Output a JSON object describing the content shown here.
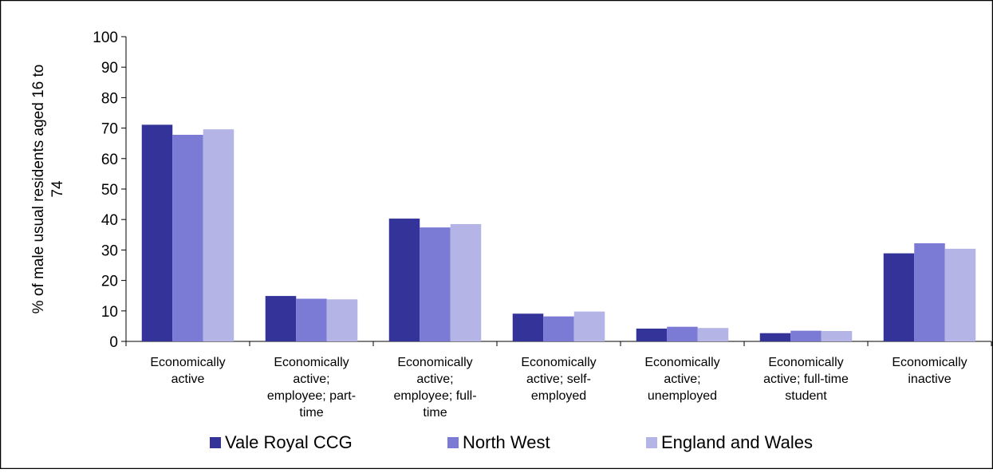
{
  "chart_data": {
    "type": "bar",
    "title": "",
    "xlabel": "",
    "ylabel": "% of male usual residents aged 16 to 74",
    "ylim": [
      0,
      100
    ],
    "yticks": [
      0,
      10,
      20,
      30,
      40,
      50,
      60,
      70,
      80,
      90,
      100
    ],
    "grid": false,
    "legend_position": "bottom",
    "categories": [
      "Economically active",
      "Economically active; employee; part-time",
      "Economically active; employee; full-time",
      "Economically active; self-employed",
      "Economically active; unemployed",
      "Economically active; full-time student",
      "Economically inactive"
    ],
    "series": [
      {
        "name": "Vale Royal CCG",
        "color": "#333399",
        "values": [
          71.1,
          14.9,
          40.3,
          9.1,
          4.2,
          2.7,
          28.9
        ]
      },
      {
        "name": "North West",
        "color": "#7b7bd6",
        "values": [
          67.8,
          14.0,
          37.4,
          8.2,
          4.8,
          3.5,
          32.2
        ]
      },
      {
        "name": "England and Wales",
        "color": "#b4b4e6",
        "values": [
          69.6,
          13.8,
          38.5,
          9.8,
          4.4,
          3.4,
          30.4
        ]
      }
    ]
  }
}
